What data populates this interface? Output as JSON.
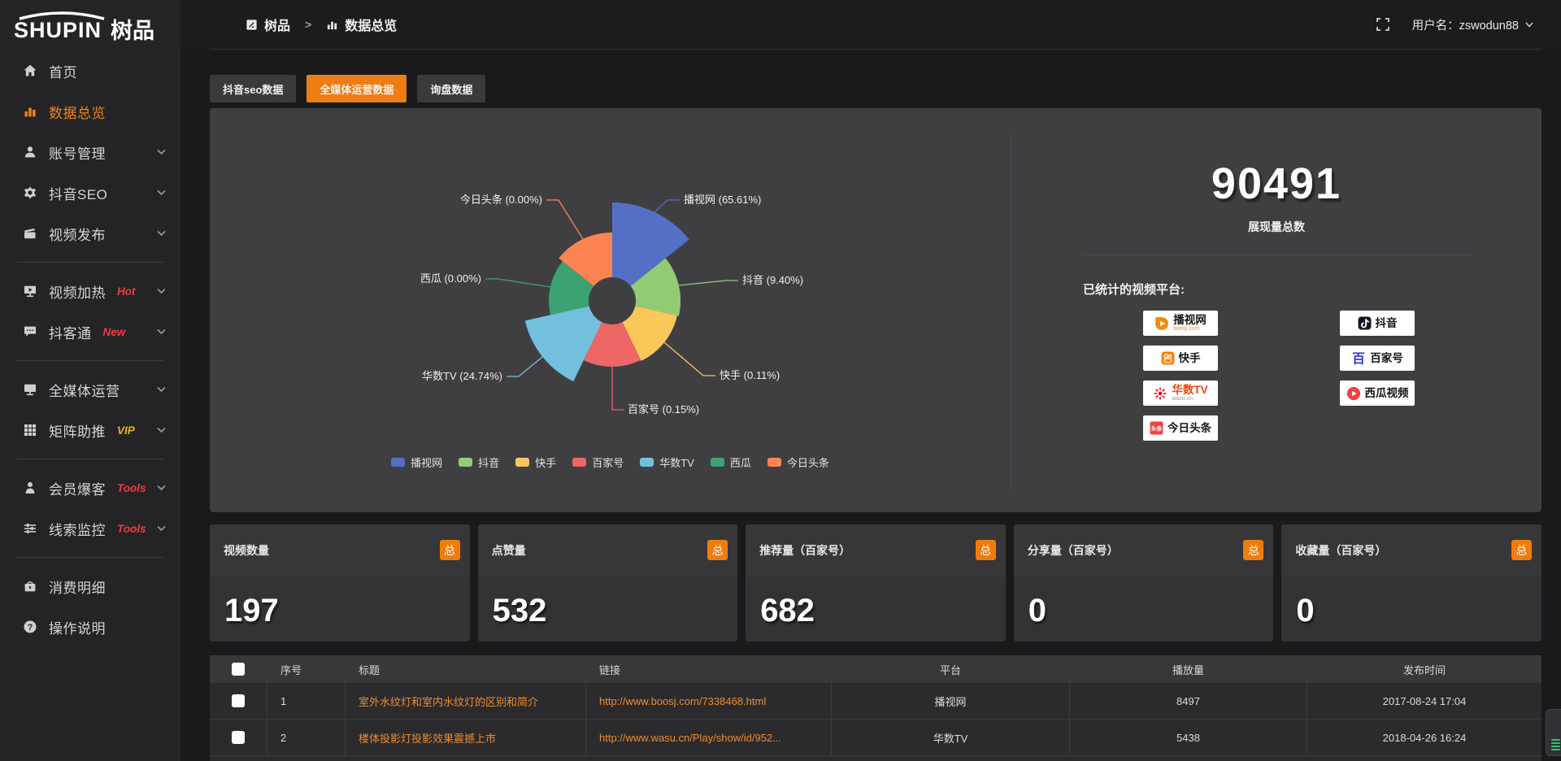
{
  "brand": {
    "name_en": "SHUPIN",
    "name_cn": "树品"
  },
  "topbar": {
    "breadcrumb": [
      {
        "icon": "doc-icon",
        "label": "树品"
      },
      {
        "icon": "chart-icon",
        "label": "数据总览"
      }
    ],
    "separator": ">",
    "username_prefix": "用户名：",
    "username": "zswodun88"
  },
  "sidebar": {
    "items": [
      {
        "type": "item",
        "icon": "home",
        "label": "首页"
      },
      {
        "type": "item",
        "icon": "chart",
        "label": "数据总览",
        "active": true
      },
      {
        "type": "item",
        "icon": "user",
        "label": "账号管理",
        "expandable": true
      },
      {
        "type": "item",
        "icon": "gear",
        "label": "抖音SEO",
        "expandable": true
      },
      {
        "type": "item",
        "icon": "video",
        "label": "视频发布",
        "expandable": true
      },
      {
        "type": "divider"
      },
      {
        "type": "item",
        "icon": "screen-play",
        "label": "视频加热",
        "badge": "Hot",
        "badge_color": "#f23c3c",
        "expandable": true
      },
      {
        "type": "item",
        "icon": "chat",
        "label": "抖客通",
        "badge": "New",
        "badge_color": "#f23c3c",
        "expandable": true
      },
      {
        "type": "divider"
      },
      {
        "type": "item",
        "icon": "monitor",
        "label": "全媒体运营",
        "expandable": true
      },
      {
        "type": "item",
        "icon": "grid",
        "label": "矩阵助推",
        "badge": "VIP",
        "badge_color": "#f3b01d",
        "expandable": true
      },
      {
        "type": "divider"
      },
      {
        "type": "item",
        "icon": "member",
        "label": "会员爆客",
        "badge": "Tools",
        "badge_color": "#f23c3c",
        "expandable": true
      },
      {
        "type": "item",
        "icon": "sliders",
        "label": "线索监控",
        "badge": "Tools",
        "badge_color": "#f23c3c",
        "expandable": true
      },
      {
        "type": "divider"
      },
      {
        "type": "item",
        "icon": "wallet",
        "label": "消费明细"
      },
      {
        "type": "item",
        "icon": "help",
        "label": "操作说明"
      }
    ]
  },
  "tabs": [
    {
      "label": "抖音seo数据",
      "active": false
    },
    {
      "label": "全媒体运营数据",
      "active": true
    },
    {
      "label": "询盘数据",
      "active": false
    }
  ],
  "chart_data": {
    "type": "pie",
    "variant": "nightingale-rose",
    "categories": [
      "播视网",
      "抖音",
      "快手",
      "百家号",
      "华数TV",
      "西瓜",
      "今日头条"
    ],
    "values_percent": [
      65.61,
      9.4,
      0.11,
      0.15,
      24.74,
      0.0,
      0.0
    ],
    "labels": [
      "播视网 (65.61%)",
      "抖音 (9.40%)",
      "快手 (0.11%)",
      "百家号 (0.15%)",
      "华数TV (24.74%)",
      "西瓜 (0.00%)",
      "今日头条 (0.00%)"
    ],
    "colors": [
      "#5470c6",
      "#91cc75",
      "#fac858",
      "#ee6666",
      "#73c0de",
      "#3ba272",
      "#fc8452"
    ],
    "legend_position": "bottom",
    "equal_angles": true,
    "display_radii": [
      121,
      84,
      82,
      81,
      110,
      78,
      84
    ],
    "inner_radius": 29
  },
  "summary": {
    "total_value": "90491",
    "total_label": "展现量总数",
    "platforms_title": "已统计的视频平台:",
    "platforms": [
      {
        "id": "boosj",
        "label": "播视网",
        "sub": "boosj.com",
        "sub_style": "orange",
        "col": 0,
        "row": 0
      },
      {
        "id": "douyin",
        "label": "抖音",
        "col": 1,
        "row": 0
      },
      {
        "id": "kuaishou",
        "label": "快手",
        "col": 0,
        "row": 1
      },
      {
        "id": "baijiahao",
        "label": "百家号",
        "col": 1,
        "row": 1
      },
      {
        "id": "wasu",
        "label": "华数TV",
        "sub": "wasu.cn",
        "sub_style": "gray",
        "col": 0,
        "row": 2
      },
      {
        "id": "xigua",
        "label": "西瓜视频",
        "col": 1,
        "row": 2
      },
      {
        "id": "toutiao",
        "label": "今日头条",
        "col": 0,
        "row": 3
      }
    ]
  },
  "stat_cards": [
    {
      "label": "视频数量",
      "badge": "总",
      "value": "197"
    },
    {
      "label": "点赞量",
      "badge": "总",
      "value": "532"
    },
    {
      "label": "推荐量（百家号）",
      "badge": "总",
      "value": "682"
    },
    {
      "label": "分享量（百家号）",
      "badge": "总",
      "value": "0"
    },
    {
      "label": "收藏量（百家号）",
      "badge": "总",
      "value": "0"
    }
  ],
  "table": {
    "headers": [
      "序号",
      "标题",
      "链接",
      "平台",
      "播放量",
      "发布时间"
    ],
    "rows": [
      {
        "seq": "1",
        "title": "室外水纹灯和室内水纹灯的区别和简介",
        "link": "http://www.boosj.com/7338468.html",
        "platform": "播视网",
        "plays": "8497",
        "time": "2017-08-24 17:04"
      },
      {
        "seq": "2",
        "title": "楼体投影灯投影效果震撼上市",
        "link": "http://www.wasu.cn/Play/show/id/952...",
        "platform": "华数TV",
        "plays": "5438",
        "time": "2018-04-26 16:24"
      }
    ]
  }
}
